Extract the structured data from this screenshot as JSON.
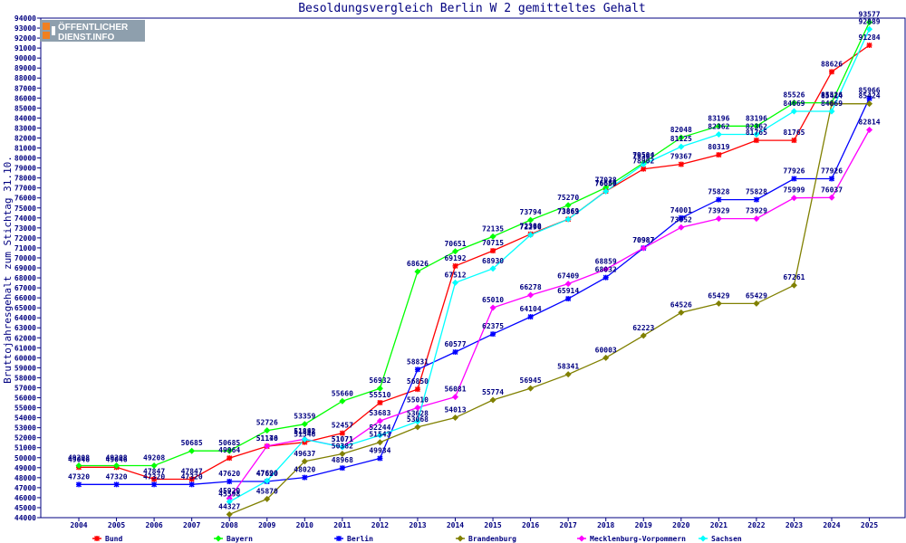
{
  "logo": {
    "line1": "ÖFFENTLICHER",
    "line2": "DIENST.INFO"
  },
  "chart_data": {
    "type": "line",
    "title": "Besoldungsvergleich Berlin W 2 gemitteltes Gehalt",
    "ylabel": "Bruttojahresgehalt zum Stichtag 31.10.",
    "xlabel": "",
    "ylim": [
      44000,
      94000
    ],
    "ytick_step": 1000,
    "categories": [
      "2004",
      "2005",
      "2006",
      "2007",
      "2008",
      "2009",
      "2010",
      "2011",
      "2012",
      "2013",
      "2014",
      "2015",
      "2016",
      "2017",
      "2018",
      "2019",
      "2020",
      "2021",
      "2022",
      "2023",
      "2024",
      "2025"
    ],
    "grid": false,
    "legend_position": "bottom",
    "series": [
      {
        "name": "Bund",
        "color": "#ff0000",
        "marker": "star",
        "values": [
          49046,
          49046,
          47847,
          47847,
          49964,
          51146,
          51546,
          52457,
          55510,
          56850,
          69192,
          70715,
          72380,
          73869,
          76680,
          78902,
          79367,
          80319,
          81765,
          81765,
          88626,
          91284
        ]
      },
      {
        "name": "Bayern",
        "color": "#00ff00",
        "marker": "diamond",
        "values": [
          49208,
          49208,
          49208,
          50685,
          50685,
          52726,
          53359,
          55660,
          56932,
          68626,
          70651,
          72135,
          73794,
          75270,
          77038,
          79504,
          82048,
          83196,
          83196,
          85526,
          85526,
          93577
        ]
      },
      {
        "name": "Berlin",
        "color": "#0000ff",
        "marker": "star",
        "values": [
          47320,
          47320,
          47320,
          47320,
          47620,
          47620,
          48020,
          48968,
          49934,
          58831,
          60577,
          62375,
          64104,
          65914,
          68032,
          70987,
          74001,
          75828,
          75828,
          77926,
          77926,
          85966
        ]
      },
      {
        "name": "Brandenburg",
        "color": "#808000",
        "marker": "diamond",
        "values": [
          null,
          null,
          null,
          null,
          44327,
          45870,
          49637,
          50382,
          51543,
          53068,
          54013,
          55774,
          56945,
          58341,
          60003,
          62223,
          64526,
          65429,
          65429,
          67261,
          85424,
          85424
        ]
      },
      {
        "name": "Mecklenburg-Vorpommern",
        "color": "#ff00ff",
        "marker": "diamond",
        "values": [
          null,
          null,
          null,
          null,
          45920,
          51170,
          51862,
          51071,
          53683,
          55010,
          56081,
          65010,
          66278,
          67409,
          68859,
          70987,
          73052,
          73929,
          73929,
          75999,
          76037,
          82814
        ]
      },
      {
        "name": "Sachsen",
        "color": "#00ffff",
        "marker": "diamond",
        "values": [
          null,
          null,
          null,
          null,
          45598,
          47690,
          51838,
          51071,
          52244,
          53628,
          67512,
          68930,
          72296,
          73863,
          76659,
          79367,
          81125,
          82362,
          82362,
          84669,
          84669,
          92889
        ]
      }
    ]
  }
}
